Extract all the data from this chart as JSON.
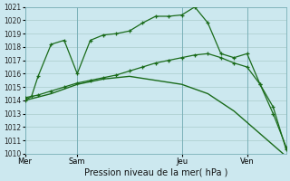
{
  "xlabel": "Pression niveau de la mer( hPa )",
  "bg_color": "#cce8ef",
  "grid_color": "#aacccc",
  "line_color": "#1a6b1a",
  "ylim": [
    1010,
    1021
  ],
  "yticks": [
    1010,
    1011,
    1012,
    1013,
    1014,
    1015,
    1016,
    1017,
    1018,
    1019,
    1020,
    1021
  ],
  "xtick_labels": [
    "Mer",
    "Sam",
    "Jeu",
    "Ven"
  ],
  "xtick_positions": [
    0,
    4,
    12,
    17
  ],
  "vlines": [
    0,
    4,
    12,
    17
  ],
  "line1_x": [
    0,
    0.5,
    1,
    2,
    3,
    4,
    5,
    6,
    7,
    8,
    9,
    10,
    11,
    12,
    13,
    14,
    15,
    16,
    17,
    18,
    19,
    20
  ],
  "line1_y": [
    1014.0,
    1014.3,
    1015.8,
    1018.2,
    1018.5,
    1016.0,
    1018.5,
    1018.9,
    1019.0,
    1019.2,
    1019.8,
    1020.3,
    1020.3,
    1020.4,
    1021.0,
    1019.8,
    1017.5,
    1017.2,
    1017.5,
    1015.2,
    1013.0,
    1010.5
  ],
  "line2_x": [
    0,
    1,
    2,
    3,
    4,
    5,
    6,
    7,
    8,
    9,
    10,
    11,
    12,
    13,
    14,
    15,
    16,
    17,
    18,
    19,
    20
  ],
  "line2_y": [
    1014.2,
    1014.4,
    1014.7,
    1015.0,
    1015.3,
    1015.5,
    1015.7,
    1015.9,
    1016.2,
    1016.5,
    1016.8,
    1017.0,
    1017.2,
    1017.4,
    1017.5,
    1017.2,
    1016.8,
    1016.5,
    1015.2,
    1013.5,
    1010.3
  ],
  "line3_x": [
    0,
    2,
    4,
    6,
    8,
    10,
    12,
    14,
    16,
    18,
    20
  ],
  "line3_y": [
    1014.0,
    1014.5,
    1015.2,
    1015.6,
    1015.8,
    1015.5,
    1015.2,
    1014.5,
    1013.2,
    1011.5,
    1009.8
  ]
}
